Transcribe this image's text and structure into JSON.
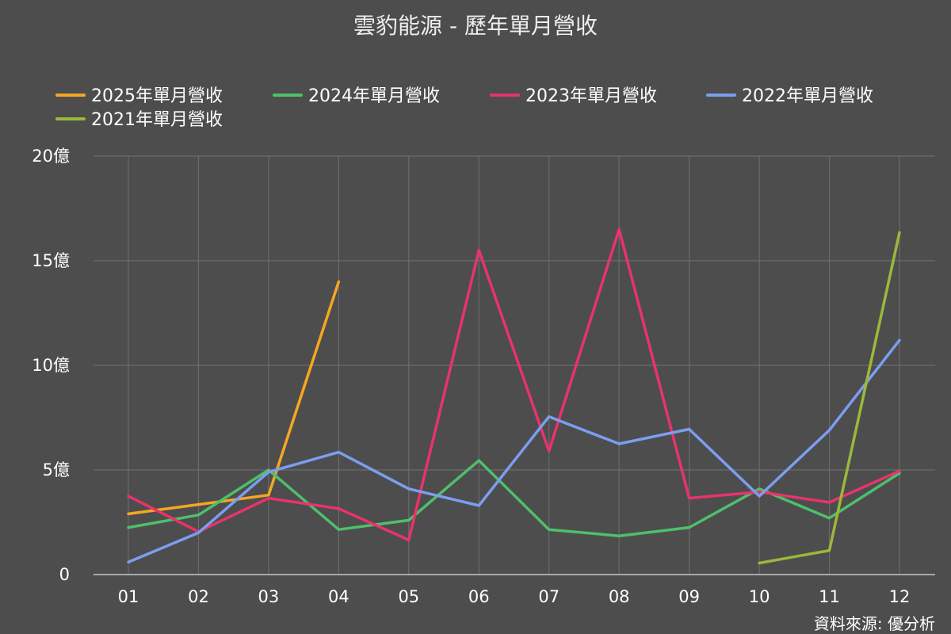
{
  "chart_data": {
    "type": "line",
    "title": "雲豹能源 - 歷年單月營收",
    "source": "資料來源: 優分析",
    "xlabel": "",
    "ylabel": "",
    "categories": [
      "01",
      "02",
      "03",
      "04",
      "05",
      "06",
      "07",
      "08",
      "09",
      "10",
      "11",
      "12"
    ],
    "ylim": [
      0,
      20
    ],
    "yticks": [
      {
        "value": 0,
        "label": "0"
      },
      {
        "value": 5,
        "label": "5億"
      },
      {
        "value": 10,
        "label": "10億"
      },
      {
        "value": 15,
        "label": "15億"
      },
      {
        "value": 20,
        "label": "20億"
      }
    ],
    "grid": true,
    "legend_position": "top-left",
    "series": [
      {
        "name": "2025年單月營收",
        "color": "#f5a623",
        "values": [
          2.9,
          3.35,
          3.8,
          14.0,
          null,
          null,
          null,
          null,
          null,
          null,
          null,
          null
        ]
      },
      {
        "name": "2024年單月營收",
        "color": "#4fbf6b",
        "values": [
          2.25,
          2.85,
          5.0,
          2.15,
          2.6,
          5.45,
          2.15,
          1.85,
          2.25,
          4.1,
          2.7,
          4.85
        ]
      },
      {
        "name": "2023年單月營收",
        "color": "#e8336c",
        "values": [
          3.75,
          2.05,
          3.65,
          3.15,
          1.65,
          15.5,
          5.9,
          16.5,
          3.65,
          3.95,
          3.45,
          4.95
        ]
      },
      {
        "name": "2022年單月營收",
        "color": "#7b9ef0",
        "values": [
          0.6,
          2.0,
          4.9,
          5.85,
          4.1,
          3.3,
          7.55,
          6.25,
          6.95,
          3.75,
          6.9,
          11.2
        ]
      },
      {
        "name": "2021年單月營收",
        "color": "#9ab83b",
        "values": [
          null,
          null,
          null,
          null,
          null,
          null,
          null,
          null,
          null,
          0.55,
          1.15,
          16.35
        ]
      }
    ]
  }
}
